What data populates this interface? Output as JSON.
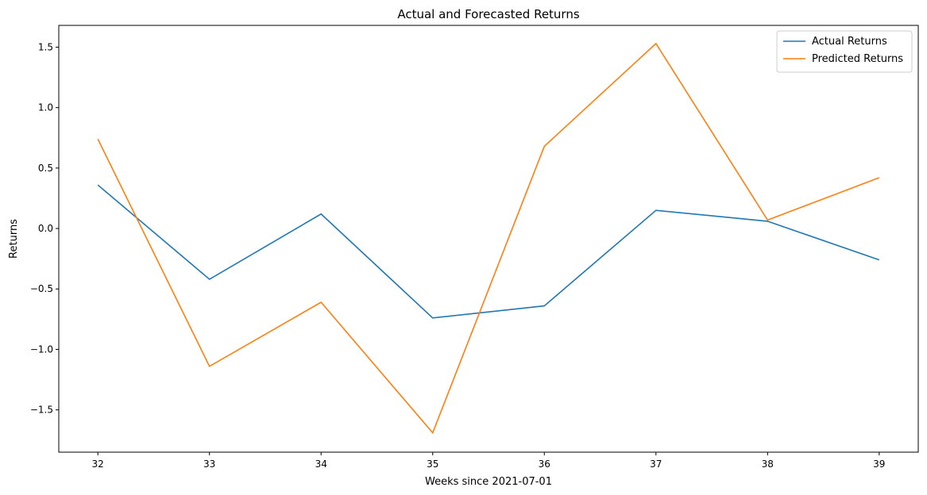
{
  "chart_data": {
    "type": "line",
    "title": "Actual and Forecasted Returns",
    "xlabel": "Weeks since 2021-07-01",
    "ylabel": "Returns",
    "x": [
      32,
      33,
      34,
      35,
      36,
      37,
      38,
      39
    ],
    "xticks": [
      "32",
      "33",
      "34",
      "35",
      "36",
      "37",
      "38",
      "39"
    ],
    "yticks": [
      1.5,
      1.0,
      0.5,
      0.0,
      -0.5,
      -1.0,
      -1.5
    ],
    "ytick_labels": [
      "1.5",
      "1.0",
      "0.5",
      "0.0",
      "−0.5",
      "−1.0",
      "−1.5"
    ],
    "xlim": [
      31.65,
      39.35
    ],
    "ylim": [
      -1.85,
      1.68
    ],
    "grid": false,
    "legend_position": "top-right",
    "series": [
      {
        "name": "Actual Returns",
        "color": "#1f77b4",
        "values": [
          0.36,
          -0.42,
          0.12,
          -0.74,
          -0.64,
          0.15,
          0.06,
          -0.26
        ]
      },
      {
        "name": "Predicted Returns",
        "color": "#ff7f0e",
        "values": [
          0.74,
          -1.14,
          -0.61,
          -1.69,
          0.68,
          1.53,
          0.07,
          0.42
        ]
      }
    ]
  }
}
